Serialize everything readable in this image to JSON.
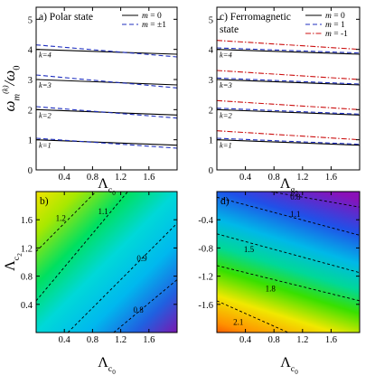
{
  "chart_data": [
    {
      "panel": "a",
      "type": "line",
      "annotation": "a) Polar state",
      "ylabel": "ω_m^(k)/ω_0",
      "xlabel": "Λ_c0",
      "xlim": [
        0,
        2.0
      ],
      "ylim": [
        0,
        5.4
      ],
      "xticks": [
        "0.4",
        "0.8",
        "1.2",
        "1.6"
      ],
      "yticks": [
        "0",
        "1",
        "2",
        "3",
        "4",
        "5"
      ],
      "legend": [
        "m = 0",
        "m = ±1"
      ],
      "level_labels": [
        "k=1",
        "k=2",
        "k=3",
        "k=4"
      ],
      "series": [
        {
          "name": "m = 0",
          "style": "solid",
          "color": "#000000",
          "lines": [
            [
              1.0,
              0.82
            ],
            [
              2.0,
              1.82
            ],
            [
              3.0,
              2.82
            ],
            [
              4.0,
              3.84
            ]
          ]
        },
        {
          "name": "m = ±1",
          "style": "dashed",
          "color": "#1f2fbf",
          "lines": [
            [
              1.05,
              0.72
            ],
            [
              2.1,
              1.72
            ],
            [
              3.15,
              2.72
            ],
            [
              4.15,
              3.75
            ]
          ]
        }
      ]
    },
    {
      "panel": "c",
      "type": "line",
      "annotation": [
        "c) Ferromagnetic",
        "state"
      ],
      "xlabel": "Λ_g2",
      "xlim": [
        0,
        2.0
      ],
      "ylim": [
        0,
        5.4
      ],
      "xticks": [
        "0.4",
        "0.8",
        "1.2",
        "1.6"
      ],
      "yticks": [
        "0",
        "1",
        "2",
        "3",
        "4",
        "5"
      ],
      "legend": [
        "m = 0",
        "m = 1",
        "m = -1"
      ],
      "level_labels": [
        "k=1",
        "k=2",
        "k=3",
        "k=4"
      ],
      "series": [
        {
          "name": "m = 0",
          "style": "solid",
          "color": "#000000",
          "lines": [
            [
              1.0,
              0.82
            ],
            [
              2.0,
              1.82
            ],
            [
              3.0,
              2.82
            ],
            [
              4.0,
              3.84
            ]
          ]
        },
        {
          "name": "m = 1",
          "style": "dashed",
          "color": "#1f2fbf",
          "lines": [
            [
              1.05,
              0.85
            ],
            [
              2.05,
              1.85
            ],
            [
              3.05,
              2.85
            ],
            [
              4.05,
              3.88
            ]
          ]
        },
        {
          "name": "m = -1",
          "style": "dashdot",
          "color": "#cc1111",
          "lines": [
            [
              1.3,
              1.0
            ],
            [
              2.3,
              2.0
            ],
            [
              3.3,
              3.0
            ],
            [
              4.3,
              4.0
            ]
          ]
        }
      ]
    },
    {
      "panel": "b",
      "type": "heatmap",
      "annotation": "b)",
      "xlabel": "Λ_c0",
      "ylabel": "Λ_c2",
      "xlim": [
        0,
        2.0
      ],
      "ylim": [
        0,
        2.0
      ],
      "xticks": [
        "0.4",
        "0.8",
        "1.2",
        "1.6"
      ],
      "yticks": [
        "0.4",
        "0.8",
        "1.2",
        "1.6"
      ],
      "contours": [
        {
          "label": "1.2",
          "points": [
            [
              0.0,
              1.15
            ],
            [
              0.85,
              2.0
            ]
          ]
        },
        {
          "label": "1.1",
          "points": [
            [
              0.0,
              0.45
            ],
            [
              1.3,
              2.0
            ]
          ]
        },
        {
          "label": "0.9",
          "points": [
            [
              0.45,
              0.0
            ],
            [
              2.0,
              1.55
            ]
          ]
        },
        {
          "label": "0.8",
          "points": [
            [
              1.1,
              0.0
            ],
            [
              2.0,
              0.75
            ]
          ]
        }
      ],
      "contour_labels": [
        {
          "text": "1.2",
          "x": 0.35,
          "y": 1.62
        },
        {
          "text": "1.1",
          "x": 0.95,
          "y": 1.72
        },
        {
          "text": "0.9",
          "x": 1.5,
          "y": 1.05
        },
        {
          "text": "0.8",
          "x": 1.45,
          "y": 0.32
        }
      ]
    },
    {
      "panel": "d",
      "type": "heatmap",
      "annotation": "d)",
      "xlabel": "Λ_c0",
      "xlim": [
        0,
        2.0
      ],
      "ylim": [
        -2.0,
        0.0
      ],
      "xticks": [
        "0.4",
        "0.8",
        "1.2",
        "1.6"
      ],
      "yticks": [
        "-0.4",
        "-0.8",
        "-1.2",
        "-1.6"
      ],
      "contours": [
        {
          "label": "0.8",
          "points": [
            [
              0.75,
              0.0
            ],
            [
              2.0,
              -0.22
            ]
          ]
        },
        {
          "label": "1.1",
          "points": [
            [
              0.0,
              -0.08
            ],
            [
              2.0,
              -0.62
            ]
          ]
        },
        {
          "label": "1.5",
          "points": [
            [
              0.0,
              -0.6
            ],
            [
              2.0,
              -1.15
            ]
          ]
        },
        {
          "label": "1.8",
          "points": [
            [
              0.0,
              -1.05
            ],
            [
              2.0,
              -1.55
            ]
          ]
        },
        {
          "label": "2.1",
          "points": [
            [
              0.0,
              -1.55
            ],
            [
              1.0,
              -2.0
            ]
          ]
        }
      ],
      "contour_labels": [
        {
          "text": "0.8",
          "x": 1.1,
          "y": -0.08
        },
        {
          "text": "1.1",
          "x": 1.1,
          "y": -0.32
        },
        {
          "text": "1.5",
          "x": 0.45,
          "y": -0.82
        },
        {
          "text": "1.8",
          "x": 0.75,
          "y": -1.38
        },
        {
          "text": "2.1",
          "x": 0.3,
          "y": -1.85
        }
      ]
    }
  ]
}
